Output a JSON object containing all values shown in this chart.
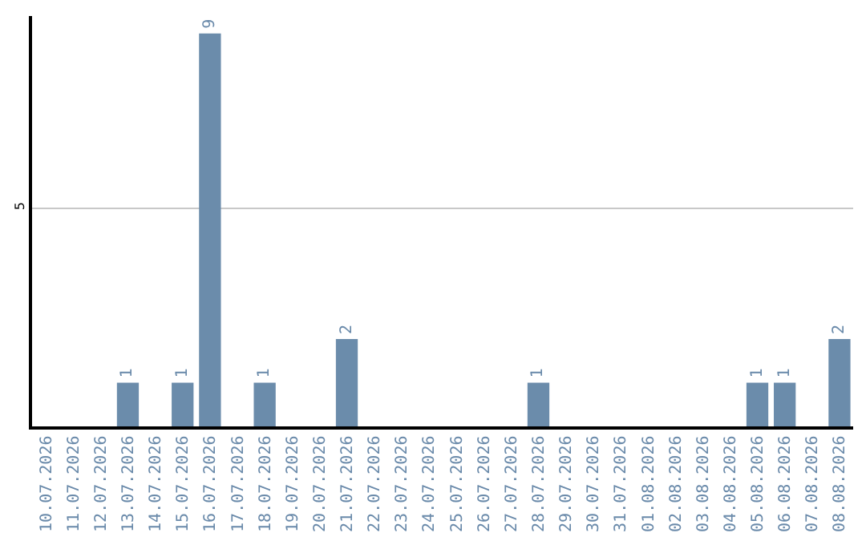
{
  "chart_data": {
    "type": "bar",
    "categories": [
      "10.07.2026",
      "11.07.2026",
      "12.07.2026",
      "13.07.2026",
      "14.07.2026",
      "15.07.2026",
      "16.07.2026",
      "17.07.2026",
      "18.07.2026",
      "19.07.2026",
      "20.07.2026",
      "21.07.2026",
      "22.07.2026",
      "23.07.2026",
      "24.07.2026",
      "25.07.2026",
      "26.07.2026",
      "27.07.2026",
      "28.07.2026",
      "29.07.2026",
      "30.07.2026",
      "31.07.2026",
      "01.08.2026",
      "02.08.2026",
      "03.08.2026",
      "04.08.2026",
      "05.08.2026",
      "06.08.2026",
      "07.08.2026",
      "08.08.2026"
    ],
    "values": [
      0,
      0,
      0,
      1,
      0,
      1,
      9,
      0,
      1,
      0,
      0,
      2,
      0,
      0,
      0,
      0,
      0,
      0,
      1,
      0,
      0,
      0,
      0,
      0,
      0,
      0,
      1,
      1,
      0,
      2
    ],
    "value_labels": [
      null,
      null,
      null,
      "1",
      null,
      "1",
      "9",
      null,
      "1",
      null,
      null,
      "2",
      null,
      null,
      null,
      null,
      null,
      null,
      "1",
      null,
      null,
      null,
      null,
      null,
      null,
      null,
      "1",
      "1",
      null,
      "2"
    ],
    "color": "#6b8cab",
    "ylim": [
      0,
      9.4
    ],
    "yticks": [
      5
    ],
    "grid": "y",
    "legend": false
  }
}
